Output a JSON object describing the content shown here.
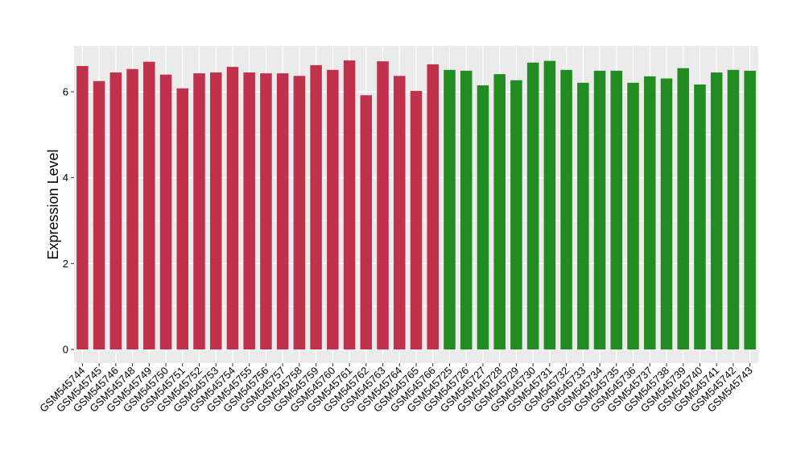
{
  "chart_data": {
    "type": "bar",
    "title": "",
    "xlabel": "",
    "ylabel": "Expression Level",
    "ylim": [
      0,
      7.0
    ],
    "yticks": [
      0,
      2,
      4,
      6
    ],
    "grid": true,
    "legend": "none",
    "colors": {
      "group_a": "#c0314b",
      "group_b": "#228b22",
      "panel_bg": "#ebebeb",
      "grid": "#ffffff"
    },
    "categories": [
      "GSM545744",
      "GSM545745",
      "GSM545746",
      "GSM545748",
      "GSM545749",
      "GSM545750",
      "GSM545751",
      "GSM545752",
      "GSM545753",
      "GSM545754",
      "GSM545755",
      "GSM545756",
      "GSM545757",
      "GSM545758",
      "GSM545759",
      "GSM545760",
      "GSM545761",
      "GSM545762",
      "GSM545763",
      "GSM545764",
      "GSM545765",
      "GSM545766",
      "GSM545725",
      "GSM545726",
      "GSM545727",
      "GSM545728",
      "GSM545729",
      "GSM545730",
      "GSM545731",
      "GSM545732",
      "GSM545733",
      "GSM545734",
      "GSM545735",
      "GSM545736",
      "GSM545737",
      "GSM545738",
      "GSM545739",
      "GSM545740",
      "GSM545741",
      "GSM545742",
      "GSM545743"
    ],
    "values": [
      6.6,
      6.25,
      6.45,
      6.53,
      6.7,
      6.4,
      6.08,
      6.43,
      6.45,
      6.58,
      6.45,
      6.43,
      6.43,
      6.37,
      6.62,
      6.51,
      6.73,
      5.92,
      6.71,
      6.37,
      6.02,
      6.64,
      6.51,
      6.49,
      6.15,
      6.41,
      6.27,
      6.68,
      6.72,
      6.51,
      6.21,
      6.49,
      6.49,
      6.21,
      6.36,
      6.31,
      6.55,
      6.17,
      6.45,
      6.51,
      6.49
    ],
    "bar_groups": [
      "group_a",
      "group_a",
      "group_a",
      "group_a",
      "group_a",
      "group_a",
      "group_a",
      "group_a",
      "group_a",
      "group_a",
      "group_a",
      "group_a",
      "group_a",
      "group_a",
      "group_a",
      "group_a",
      "group_a",
      "group_a",
      "group_a",
      "group_a",
      "group_a",
      "group_a",
      "group_b",
      "group_b",
      "group_b",
      "group_b",
      "group_b",
      "group_b",
      "group_b",
      "group_b",
      "group_b",
      "group_b",
      "group_b",
      "group_b",
      "group_b",
      "group_b",
      "group_b",
      "group_b",
      "group_b",
      "group_b",
      "group_b"
    ]
  }
}
